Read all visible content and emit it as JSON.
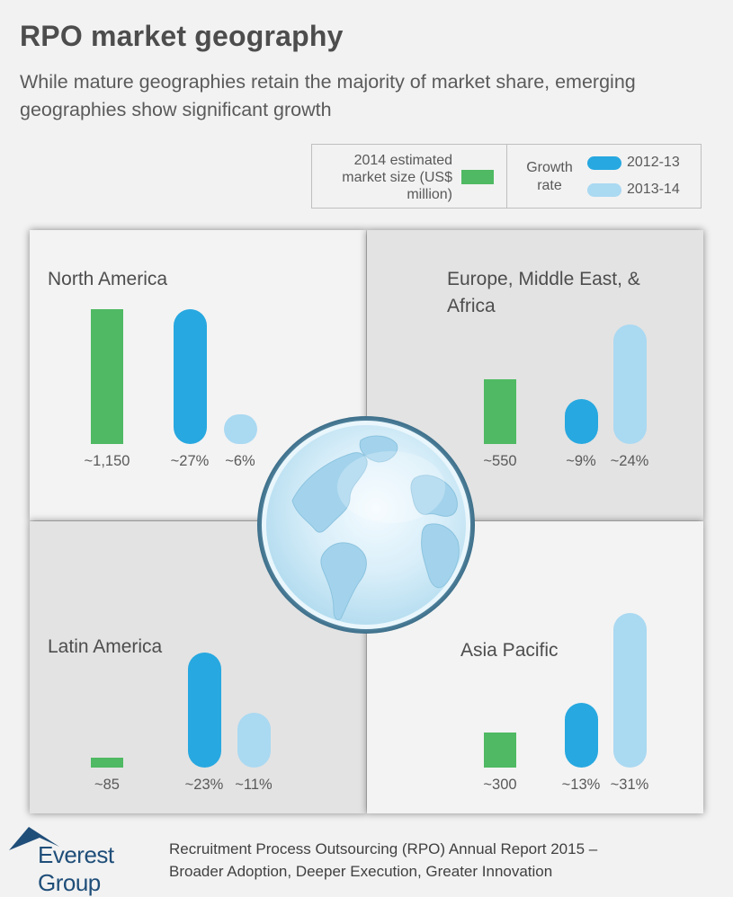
{
  "title": "RPO market geography",
  "subtitle": "While mature geographies retain the majority of market share, emerging geographies show significant growth",
  "legend": {
    "market_size_label": "2014 estimated market size (US$ million)",
    "growth_rate_label": "Growth rate",
    "series_2012": "2012-13",
    "series_2013": "2013-14"
  },
  "colors": {
    "market_size": "#4fb963",
    "growth_2012": "#27a8e0",
    "growth_2013": "#aad9f2",
    "quad_light": "#f3f3f3",
    "quad_dark": "#e3e3e3"
  },
  "chart_data": {
    "type": "bar",
    "categories": [
      "North America",
      "Europe, Middle East, & Africa",
      "Latin America",
      "Asia Pacific"
    ],
    "series": [
      {
        "name": "2014 estimated market size (US$ million)",
        "values": [
          1150,
          550,
          85,
          300
        ],
        "labels": [
          "~1,150",
          "~550",
          "~85",
          "~300"
        ]
      },
      {
        "name": "2012-13",
        "values": [
          27,
          9,
          23,
          13
        ],
        "labels": [
          "~27%",
          "~9%",
          "~23%",
          "~13%"
        ]
      },
      {
        "name": "2013-14",
        "values": [
          6,
          24,
          11,
          31
        ],
        "labels": [
          "~6%",
          "~24%",
          "~11%",
          "~31%"
        ]
      }
    ]
  },
  "regions": {
    "na": {
      "label": "North America"
    },
    "emea": {
      "label_line1": "Europe, Middle East, &",
      "label_line2": "Africa"
    },
    "la": {
      "label": "Latin America"
    },
    "ap": {
      "label": "Asia Pacific"
    }
  },
  "footer": {
    "logo": "Everest Group",
    "line1": "Recruitment Process Outsourcing (RPO) Annual Report 2015 –",
    "line2": "Broader Adoption, Deeper Execution, Greater Innovation"
  }
}
